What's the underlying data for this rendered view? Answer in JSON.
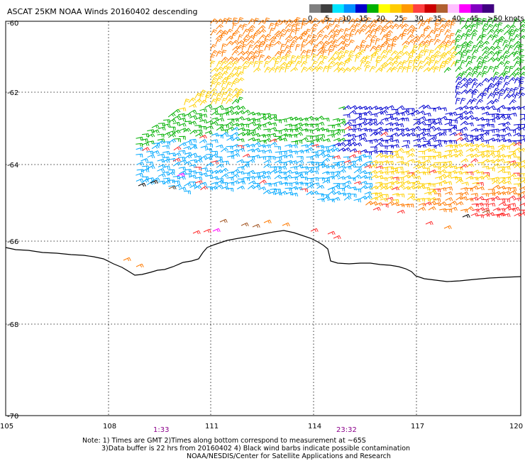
{
  "title": "ASCAT 25KM NOAA Winds 20160402 descending",
  "legend": {
    "colors": [
      "#7f7f7f",
      "#3f3f3f",
      "#00e5ff",
      "#0090ff",
      "#0000cc",
      "#00b000",
      "#ffff00",
      "#ffcc00",
      "#ff9900",
      "#ff4040",
      "#cc0000",
      "#b06030",
      "#ffc0ff",
      "#ff00ff",
      "#8000c0",
      "#400080"
    ],
    "labels": [
      "0",
      "5",
      "10",
      "15",
      "20",
      "25",
      "30",
      "35",
      "40",
      "45",
      ">50 knots"
    ]
  },
  "lat_labels": [
    "-60",
    "-62",
    "-64",
    "-66",
    "-68",
    "-70"
  ],
  "lon_labels": [
    "105",
    "108",
    "111",
    "114",
    "117",
    "120"
  ],
  "pass_times": [
    "1:33",
    "23:32"
  ],
  "notes": [
    "Note: 1) Times are GMT 2)Times along bottom correspond to measurement at ~65S",
    "3)Data buffer is 22 hrs from 20160402 4) Black wind barbs indicate possible contamination",
    "NOAA/NESDIS/Center for Satellite Applications and Research"
  ],
  "wind_colors": {
    "orange": "#ff7a00",
    "gold": "#ffd000",
    "green": "#00b000",
    "blue": "#0000d0",
    "cyan": "#00a8ff",
    "red": "#ff2a2a",
    "magenta": "#ff00ff",
    "brown": "#a0521e",
    "black": "#000000"
  }
}
